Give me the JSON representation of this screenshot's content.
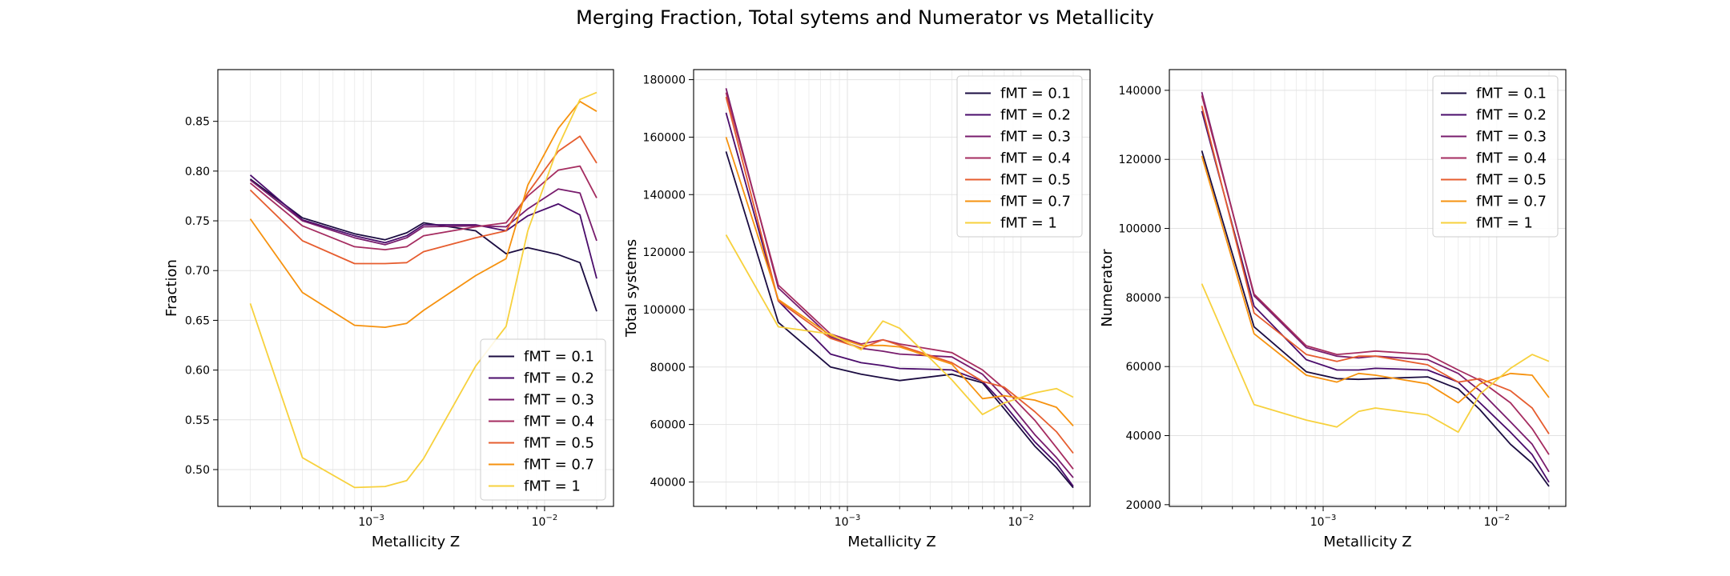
{
  "title": "Merging Fraction, Total sytems and Numerator vs Metallicity",
  "series_names": [
    "fMT = 0.1",
    "fMT = 0.2",
    "fMT = 0.3",
    "fMT = 0.4",
    "fMT = 0.5",
    "fMT = 0.7",
    "fMT = 1"
  ],
  "series_colors": [
    "#1b0c41",
    "#4a0c6b",
    "#781c6d",
    "#a52c60",
    "#e65d2f",
    "#f6920f",
    "#f7d13d"
  ],
  "chart_data": [
    {
      "type": "line",
      "xlabel": "Metallicity Z",
      "ylabel": "Fraction",
      "xscale": "log",
      "xlim": [
        0.00013,
        0.025
      ],
      "ylim": [
        0.463,
        0.902
      ],
      "yticks": [
        0.5,
        0.55,
        0.6,
        0.65,
        0.7,
        0.75,
        0.8,
        0.85
      ],
      "ytick_labels": [
        "0.50",
        "0.55",
        "0.60",
        "0.65",
        "0.70",
        "0.75",
        "0.80",
        "0.85"
      ],
      "xticks": [
        0.001,
        0.01
      ],
      "xtick_labels": [
        "10−3",
        "10−2"
      ],
      "grid": true,
      "legend": "lower right",
      "x": [
        0.0002,
        0.0004,
        0.0008,
        0.0012,
        0.0016,
        0.002,
        0.004,
        0.006,
        0.008,
        0.012,
        0.016,
        0.02
      ],
      "series": [
        {
          "name": "fMT = 0.1",
          "values": [
            0.792,
            0.753,
            0.737,
            0.731,
            0.738,
            0.748,
            0.74,
            0.717,
            0.723,
            0.716,
            0.708,
            0.659
          ]
        },
        {
          "name": "fMT = 0.2",
          "values": [
            0.796,
            0.751,
            0.735,
            0.728,
            0.735,
            0.746,
            0.746,
            0.74,
            0.755,
            0.767,
            0.756,
            0.692
          ]
        },
        {
          "name": "fMT = 0.3",
          "values": [
            0.791,
            0.75,
            0.733,
            0.726,
            0.733,
            0.744,
            0.745,
            0.744,
            0.762,
            0.782,
            0.778,
            0.73
          ]
        },
        {
          "name": "fMT = 0.4",
          "values": [
            0.788,
            0.745,
            0.724,
            0.721,
            0.724,
            0.735,
            0.744,
            0.748,
            0.775,
            0.801,
            0.805,
            0.773
          ]
        },
        {
          "name": "fMT = 0.5",
          "values": [
            0.781,
            0.73,
            0.707,
            0.707,
            0.708,
            0.719,
            0.733,
            0.74,
            0.778,
            0.82,
            0.835,
            0.808
          ]
        },
        {
          "name": "fMT = 0.7",
          "values": [
            0.752,
            0.678,
            0.645,
            0.643,
            0.647,
            0.66,
            0.695,
            0.712,
            0.786,
            0.843,
            0.87,
            0.86
          ]
        },
        {
          "name": "fMT = 1",
          "values": [
            0.667,
            0.512,
            0.482,
            0.483,
            0.489,
            0.511,
            0.604,
            0.644,
            0.74,
            0.825,
            0.872,
            0.879
          ]
        }
      ]
    },
    {
      "type": "line",
      "xlabel": "Metallicity Z",
      "ylabel": "Total systems",
      "xscale": "log",
      "xlim": [
        0.00013,
        0.025
      ],
      "ylim": [
        31500,
        183500
      ],
      "yticks": [
        40000,
        60000,
        80000,
        100000,
        120000,
        140000,
        160000,
        180000
      ],
      "ytick_labels": [
        "40000",
        "60000",
        "80000",
        "100000",
        "120000",
        "140000",
        "160000",
        "180000"
      ],
      "xticks": [
        0.001,
        0.01
      ],
      "xtick_labels": [
        "10−3",
        "10−2"
      ],
      "grid": true,
      "legend": "upper right",
      "x": [
        0.0002,
        0.0004,
        0.0008,
        0.0012,
        0.0016,
        0.002,
        0.004,
        0.006,
        0.008,
        0.012,
        0.016,
        0.02
      ],
      "series": [
        {
          "name": "fMT = 0.1",
          "values": [
            155000,
            95500,
            80000,
            77500,
            76200,
            75300,
            77500,
            74500,
            65500,
            52500,
            45000,
            38000
          ]
        },
        {
          "name": "fMT = 0.2",
          "values": [
            168500,
            103000,
            84500,
            81500,
            80500,
            79500,
            79000,
            75000,
            67000,
            54000,
            46500,
            38500
          ]
        },
        {
          "name": "fMT = 0.3",
          "values": [
            177000,
            107500,
            90500,
            86500,
            85500,
            84500,
            83500,
            77500,
            69500,
            56500,
            48500,
            41500
          ]
        },
        {
          "name": "fMT = 0.4",
          "values": [
            175500,
            108500,
            91500,
            88000,
            89500,
            88000,
            85000,
            79000,
            72500,
            61500,
            52000,
            44500
          ]
        },
        {
          "name": "fMT = 0.5",
          "values": [
            174000,
            103000,
            90000,
            86500,
            89500,
            87500,
            81500,
            75000,
            73000,
            64500,
            57500,
            50000
          ]
        },
        {
          "name": "fMT = 0.7",
          "values": [
            160000,
            103500,
            91000,
            87500,
            87500,
            87000,
            81000,
            69000,
            70000,
            68500,
            66000,
            59500
          ]
        },
        {
          "name": "fMT = 1",
          "values": [
            126000,
            94000,
            91500,
            86000,
            96000,
            93500,
            75500,
            63500,
            67500,
            71000,
            72500,
            69500
          ]
        }
      ]
    },
    {
      "type": "line",
      "xlabel": "Metallicity Z",
      "ylabel": "Numerator",
      "xscale": "log",
      "xlim": [
        0.00013,
        0.025
      ],
      "ylim": [
        19500,
        146000
      ],
      "yticks": [
        20000,
        40000,
        60000,
        80000,
        100000,
        120000,
        140000
      ],
      "ytick_labels": [
        "20000",
        "40000",
        "60000",
        "80000",
        "100000",
        "120000",
        "140000"
      ],
      "xticks": [
        0.001,
        0.01
      ],
      "xtick_labels": [
        "10−3",
        "10−2"
      ],
      "grid": true,
      "legend": "upper right",
      "x": [
        0.0002,
        0.0004,
        0.0008,
        0.0012,
        0.0016,
        0.002,
        0.004,
        0.006,
        0.008,
        0.012,
        0.016,
        0.02
      ],
      "series": [
        {
          "name": "fMT = 0.1",
          "values": [
            122500,
            71500,
            58500,
            56500,
            56300,
            56500,
            57000,
            53500,
            47500,
            37500,
            32000,
            25300
          ]
        },
        {
          "name": "fMT = 0.2",
          "values": [
            134000,
            77500,
            62000,
            59000,
            59000,
            59500,
            59000,
            55500,
            49500,
            41000,
            34500,
            26500
          ]
        },
        {
          "name": "fMT = 0.3",
          "values": [
            139500,
            80500,
            65500,
            63000,
            62500,
            63000,
            62000,
            58000,
            53000,
            44000,
            37500,
            29500
          ]
        },
        {
          "name": "fMT = 0.4",
          "values": [
            138500,
            81000,
            66000,
            63500,
            64000,
            64500,
            63500,
            59000,
            56000,
            49500,
            42000,
            34500
          ]
        },
        {
          "name": "fMT = 0.5",
          "values": [
            135500,
            75500,
            63500,
            61500,
            63000,
            63000,
            60500,
            55500,
            56500,
            53000,
            48000,
            40500
          ]
        },
        {
          "name": "fMT = 0.7",
          "values": [
            121000,
            69500,
            57500,
            55500,
            58000,
            57500,
            55000,
            49500,
            55000,
            58000,
            57500,
            51000
          ]
        },
        {
          "name": "fMT = 1",
          "values": [
            84000,
            49000,
            44500,
            42500,
            47000,
            48000,
            46000,
            41000,
            52000,
            59500,
            63500,
            61500
          ]
        }
      ]
    }
  ]
}
